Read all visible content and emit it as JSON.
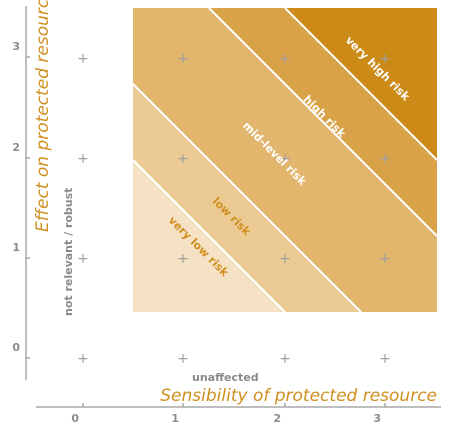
{
  "x_axis": {
    "title": "Sensibility of protected resource",
    "ticks": [
      "0",
      "1",
      "2",
      "3"
    ],
    "low_note": "unaffected"
  },
  "y_axis": {
    "title": "Effect on protected resource",
    "ticks": [
      "0",
      "1",
      "2",
      "3"
    ],
    "low_note": "not relevant / robust"
  },
  "bands": [
    {
      "label": "very low risk",
      "color": "#f5e2c5",
      "text_color": "#d08f1f"
    },
    {
      "label": "low risk",
      "color": "#ecca94",
      "text_color": "#d08f1f"
    },
    {
      "label": "mid-level risk",
      "color": "#e2b66d",
      "text_color": "#ffffff"
    },
    {
      "label": "high risk",
      "color": "#d9a249",
      "text_color": "#ffffff"
    },
    {
      "label": "very high risk",
      "color": "#cc8a17",
      "text_color": "#ffffff"
    }
  ],
  "grid_marker": "+",
  "colors": {
    "axis": "#a8a8a8",
    "accent": "#d08f1f",
    "separator": "#ffffff"
  }
}
